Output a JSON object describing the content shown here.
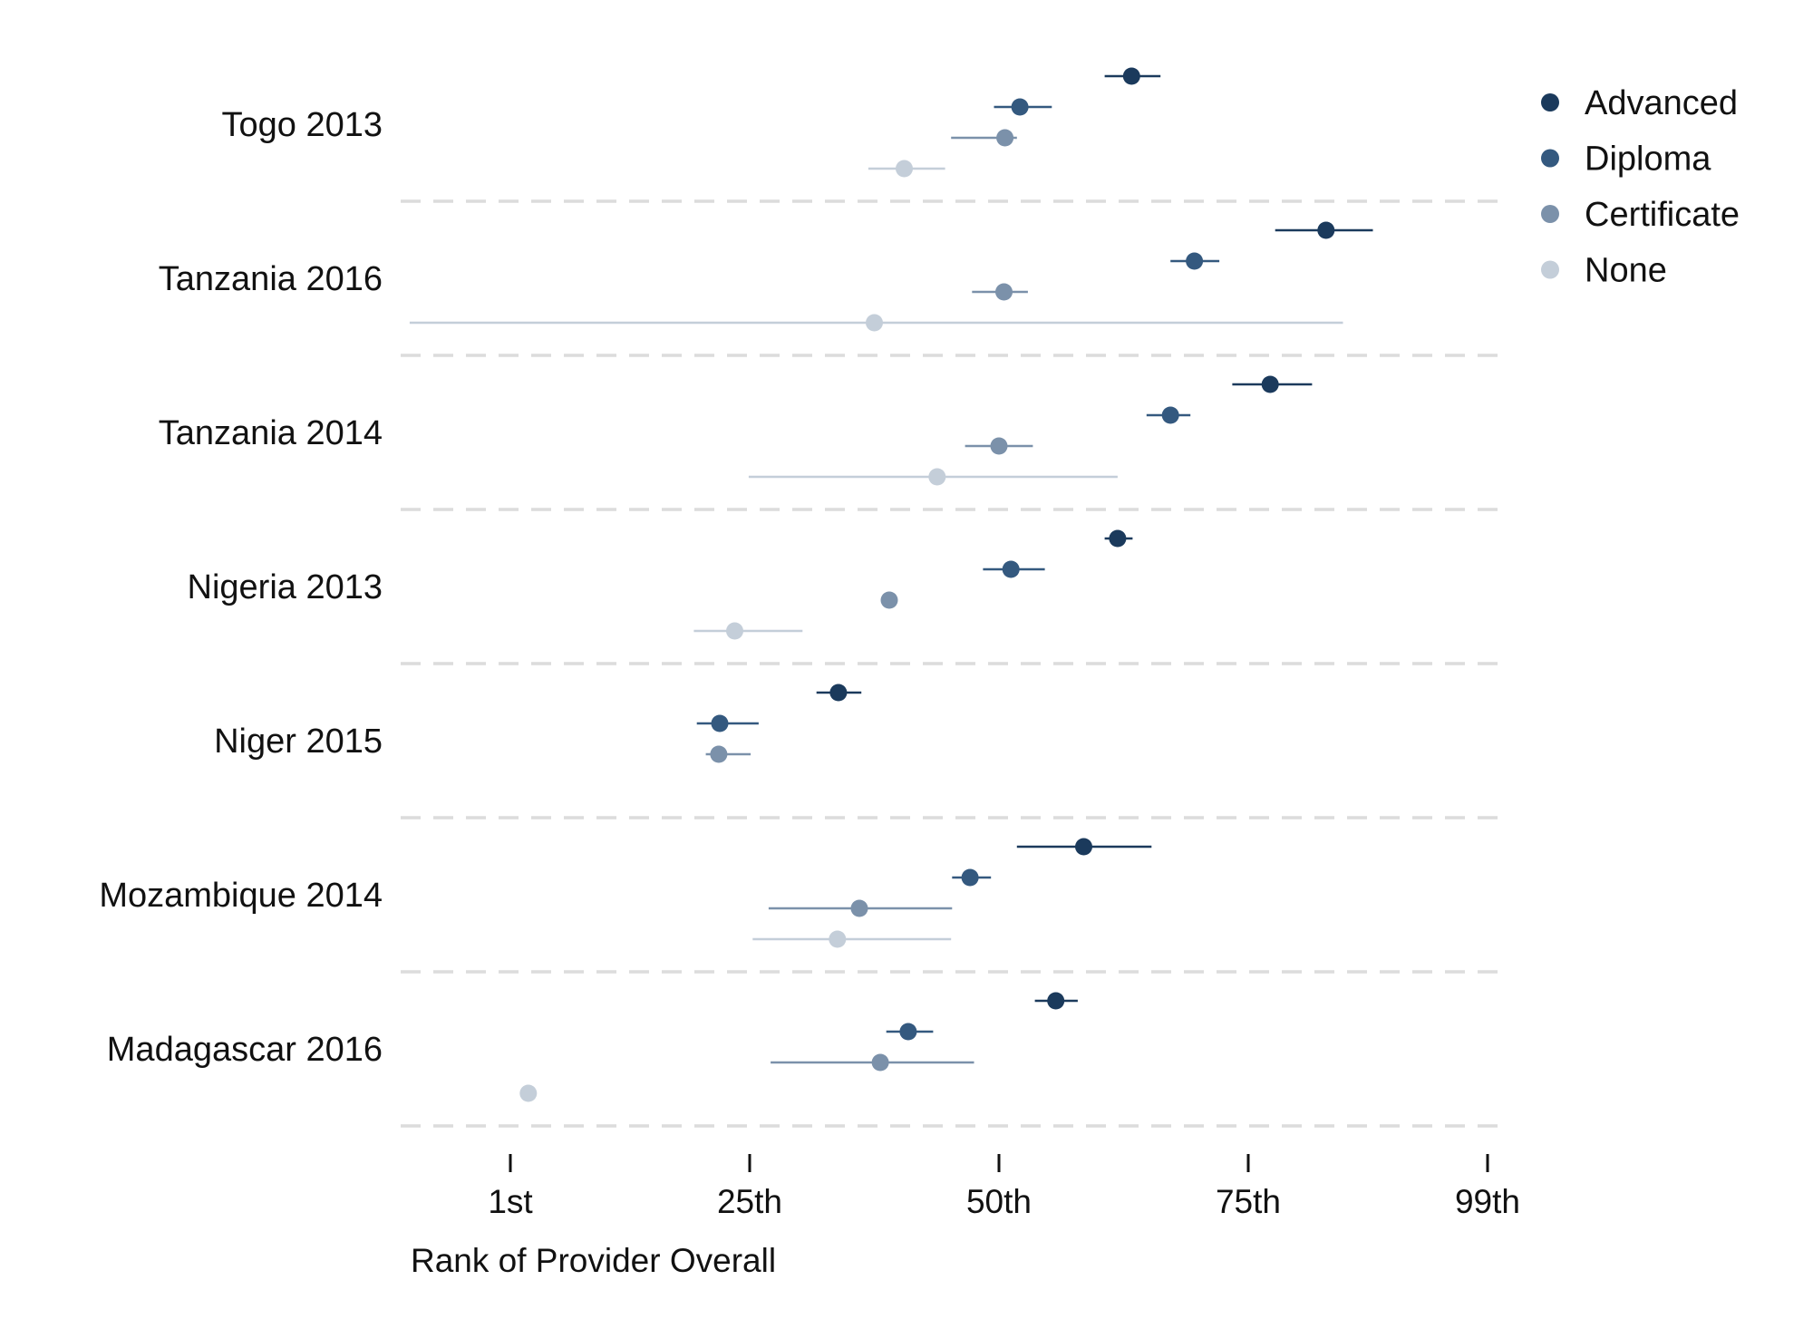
{
  "chart_data": {
    "type": "scatter",
    "subtype": "dot-and-whisker",
    "title": "",
    "xlabel": "Rank of Provider Overall",
    "ylabel": "",
    "xlim": [
      -10,
      101
    ],
    "x_ticks": [
      1,
      25,
      50,
      75,
      99
    ],
    "x_tick_labels": [
      "1st",
      "25th",
      "50th",
      "75th",
      "99th"
    ],
    "grid": false,
    "group_separators": "dashed",
    "legend_position": "top-right",
    "categories": [
      "Togo 2013",
      "Tanzania 2016",
      "Tanzania 2014",
      "Nigeria 2013",
      "Niger 2015",
      "Mozambique 2014",
      "Madagascar 2016"
    ],
    "series": [
      {
        "name": "Advanced",
        "color": "#1b3a5c",
        "values": [
          63.3,
          82.8,
          77.2,
          61.9,
          33.9,
          58.5,
          55.7
        ],
        "ci_low": [
          60.6,
          77.7,
          73.4,
          60.6,
          31.7,
          51.8,
          53.6
        ],
        "ci_high": [
          66.2,
          87.5,
          81.4,
          63.4,
          36.2,
          65.3,
          57.9
        ]
      },
      {
        "name": "Diploma",
        "color": "#34597f",
        "values": [
          52.1,
          69.6,
          67.2,
          51.2,
          22.0,
          47.1,
          40.9
        ],
        "ci_low": [
          49.5,
          67.2,
          64.8,
          48.4,
          19.7,
          45.3,
          38.7
        ],
        "ci_high": [
          55.3,
          72.1,
          69.2,
          54.6,
          25.9,
          49.2,
          43.4
        ]
      },
      {
        "name": "Certificate",
        "color": "#7b91aa",
        "values": [
          50.6,
          50.5,
          50.0,
          39.0,
          21.9,
          36.0,
          38.1
        ],
        "ci_low": [
          45.2,
          47.3,
          46.6,
          null,
          20.6,
          26.9,
          27.1
        ],
        "ci_high": [
          51.8,
          52.9,
          53.4,
          null,
          25.1,
          45.3,
          47.5
        ]
      },
      {
        "name": "None",
        "color": "#c4ced9",
        "values": [
          40.5,
          37.5,
          43.8,
          23.5,
          null,
          33.8,
          2.8
        ],
        "ci_low": [
          36.9,
          -9.1,
          24.9,
          19.4,
          null,
          25.3,
          null
        ],
        "ci_high": [
          44.6,
          84.5,
          61.9,
          30.3,
          null,
          45.2,
          null
        ]
      }
    ]
  }
}
